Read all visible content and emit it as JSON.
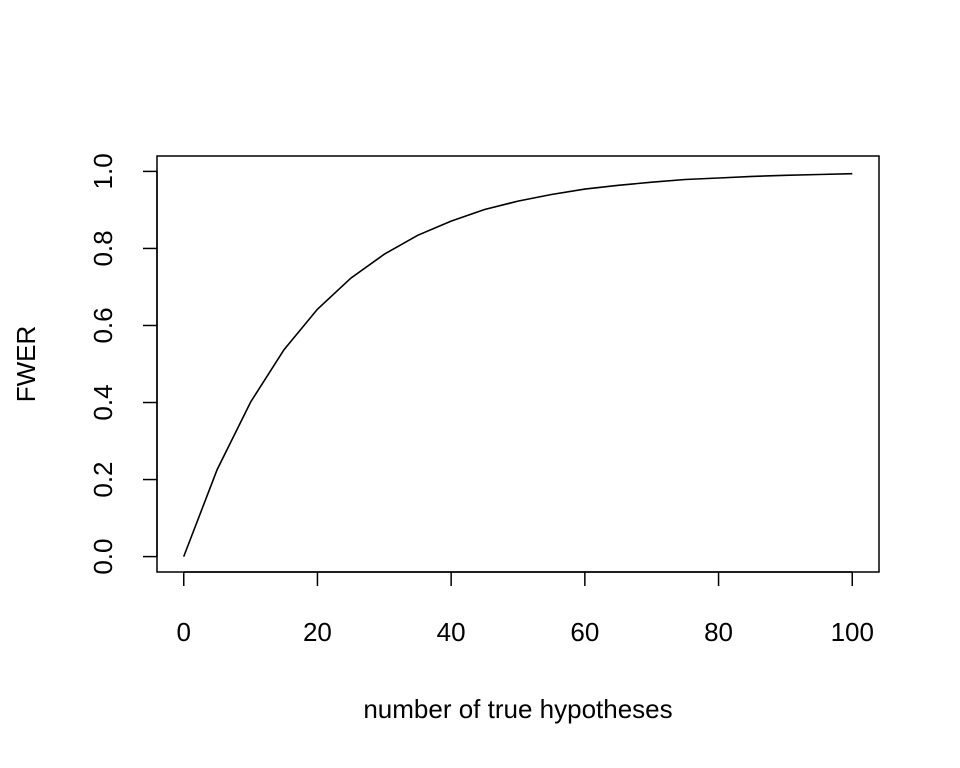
{
  "chart_data": {
    "type": "line",
    "title": "",
    "xlabel": "number of true hypotheses",
    "ylabel": "FWER",
    "xlim": [
      -4,
      104
    ],
    "ylim": [
      -0.04,
      1.04
    ],
    "x_ticks": [
      0,
      20,
      40,
      60,
      80,
      100
    ],
    "y_ticks": [
      0.0,
      0.2,
      0.4,
      0.6,
      0.8,
      1.0
    ],
    "x_tick_labels": [
      "0",
      "20",
      "40",
      "60",
      "80",
      "100"
    ],
    "y_tick_labels": [
      "0.0",
      "0.2",
      "0.4",
      "0.6",
      "0.8",
      "1.0"
    ],
    "grid": false,
    "legend": "none",
    "line_color": "#000000",
    "series": [
      {
        "x": [
          0,
          5,
          10,
          15,
          20,
          25,
          30,
          35,
          40,
          45,
          50,
          55,
          60,
          65,
          70,
          75,
          80,
          85,
          90,
          95,
          100
        ],
        "y": [
          0.0,
          0.226,
          0.401,
          0.537,
          0.642,
          0.723,
          0.785,
          0.834,
          0.871,
          0.901,
          0.923,
          0.94,
          0.954,
          0.964,
          0.972,
          0.979,
          0.983,
          0.987,
          0.99,
          0.992,
          0.994
        ]
      }
    ]
  }
}
